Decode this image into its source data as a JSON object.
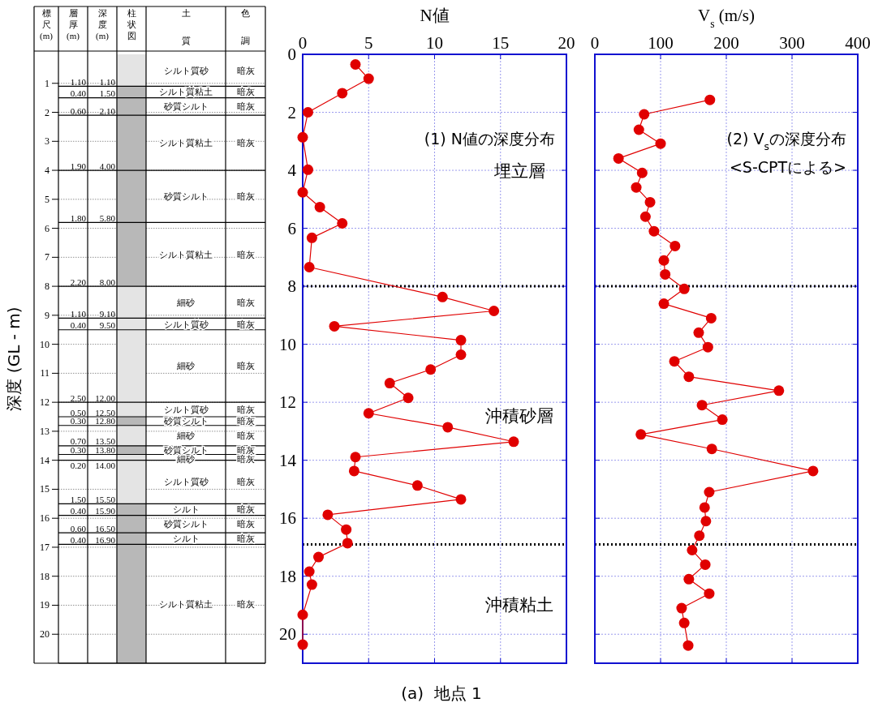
{
  "chart_data": [
    {
      "type": "bar",
      "stacked": true,
      "ylabel": "深度 (GL - m)",
      "categories": [
        "柱状図"
      ],
      "ylim": [
        21,
        0
      ],
      "yticks": [
        1,
        2,
        3,
        4,
        5,
        6,
        7,
        8,
        9,
        10,
        11,
        12,
        13,
        14,
        15,
        16,
        17,
        18,
        19,
        20
      ],
      "grid": "y",
      "series": [
        {
          "name": "シルト質砂",
          "color": "#e4e4e4",
          "values": [
            1.1
          ]
        },
        {
          "name": "シルト質粘土",
          "color": "#b8b8b8",
          "values": [
            0.4
          ]
        },
        {
          "name": "砂質シルト",
          "color": "#b8b8b8",
          "values": [
            0.6
          ]
        },
        {
          "name": "シルト質粘土",
          "color": "#b8b8b8",
          "values": [
            1.9
          ]
        },
        {
          "name": "砂質シルト",
          "color": "#b8b8b8",
          "values": [
            1.8
          ]
        },
        {
          "name": "シルト質粘土",
          "color": "#b8b8b8",
          "values": [
            2.2
          ]
        },
        {
          "name": "細砂",
          "color": "#e4e4e4",
          "values": [
            1.1
          ]
        },
        {
          "name": "シルト質砂",
          "color": "#e4e4e4",
          "values": [
            0.4
          ]
        },
        {
          "name": "細砂",
          "color": "#e4e4e4",
          "values": [
            2.5
          ]
        },
        {
          "name": "シルト質砂",
          "color": "#e4e4e4",
          "values": [
            0.5
          ]
        },
        {
          "name": "砂質シルト",
          "color": "#b8b8b8",
          "values": [
            0.3
          ]
        },
        {
          "name": "細砂",
          "color": "#e4e4e4",
          "values": [
            0.7
          ]
        },
        {
          "name": "砂質シルト",
          "color": "#b8b8b8",
          "values": [
            0.3
          ]
        },
        {
          "name": "細砂",
          "color": "#e4e4e4",
          "values": [
            0.2
          ]
        },
        {
          "name": "シルト質砂",
          "color": "#e4e4e4",
          "values": [
            1.5
          ]
        },
        {
          "name": "シルト",
          "color": "#b8b8b8",
          "values": [
            0.4
          ]
        },
        {
          "name": "砂質シルト",
          "color": "#b8b8b8",
          "values": [
            0.6
          ]
        },
        {
          "name": "シルト",
          "color": "#b8b8b8",
          "values": [
            0.4
          ]
        },
        {
          "name": "シルト質粘土",
          "color": "#b8b8b8",
          "values": [
            4.1
          ]
        }
      ],
      "annotations": [
        "標尺(m)",
        "層厚(m)",
        "深度(m)",
        "土質",
        "色調",
        "暗灰",
        "暗灰",
        "暗灰",
        "暗灰",
        "暗灰",
        "暗灰",
        "暗灰",
        "暗灰",
        "暗灰",
        "暗灰",
        "暗灰",
        "暗灰",
        "暗灰",
        "暗灰",
        "暗灰",
        "暗灰",
        "暗灰",
        "暗灰",
        "暗灰",
        "1.10",
        "0.40",
        "0.60",
        "1.90",
        "1.80",
        "2.20",
        "1.10",
        "0.40",
        "2.50",
        "0.50",
        "0.30",
        "0.70",
        "0.30",
        "0.20",
        "1.50",
        "0.40",
        "0.60",
        "0.40",
        "1.10",
        "1.50",
        "2.10",
        "4.00",
        "5.80",
        "8.00",
        "9.10",
        "9.50",
        "12.00",
        "12.50",
        "12.80",
        "13.50",
        "13.80",
        "14.00",
        "15.50",
        "15.90",
        "16.50",
        "16.90"
      ]
    },
    {
      "type": "line",
      "title": "(1) N値の深度分布",
      "xlabel": "N値",
      "xlim": [
        0,
        20
      ],
      "xticks": [
        0,
        5,
        10,
        15,
        20
      ],
      "ylim": [
        21,
        0
      ],
      "yticks": [
        0,
        2,
        4,
        6,
        8,
        10,
        12,
        14,
        16,
        18,
        20
      ],
      "grid": true,
      "marker": "circle",
      "line_style": "solid",
      "series": [
        {
          "color": "#e00000",
          "x": [
            4,
            5,
            3,
            0.4,
            0,
            0.4,
            0,
            1.3,
            3,
            0.7,
            0.5,
            10.6,
            14.5,
            2.4,
            12,
            12,
            9.7,
            6.6,
            8,
            5,
            11,
            16,
            4,
            3.9,
            8.7,
            12,
            1.9,
            3.3,
            3.4,
            1.2,
            0.5,
            0.7,
            0,
            0
          ],
          "values": [
            0.35,
            0.84,
            1.34,
            2.0,
            2.86,
            3.98,
            4.76,
            5.27,
            5.83,
            6.33,
            7.34,
            8.37,
            8.85,
            9.38,
            9.86,
            10.36,
            10.87,
            11.34,
            11.85,
            12.38,
            12.86,
            13.36,
            13.89,
            14.37,
            14.87,
            15.35,
            15.88,
            16.39,
            16.86,
            17.34,
            17.84,
            18.29,
            19.33,
            20.36
          ]
        }
      ],
      "ref_lines": [
        {
          "axis": "y",
          "value": 8.0,
          "color": "#000000",
          "line_style": "dotted"
        },
        {
          "axis": "y",
          "value": 16.9,
          "color": "#000000",
          "line_style": "dotted"
        }
      ],
      "annotations": [
        "埋立層",
        "沖積砂層",
        "沖積粘土",
        "(a)  地点 1"
      ]
    },
    {
      "type": "line",
      "title": "(2) V$_{s}$の深度分布",
      "subtitle": "<S-CPTによる>",
      "xlabel": "V$_{s}$ (m/s)",
      "xlim": [
        0,
        400
      ],
      "xticks": [
        0,
        100,
        200,
        300,
        400
      ],
      "ylim": [
        21,
        0
      ],
      "yticks": [
        0,
        2,
        4,
        6,
        8,
        10,
        12,
        14,
        16,
        18,
        20
      ],
      "tick_labels": "x",
      "grid": true,
      "marker": "circle",
      "line_style": "solid",
      "series": [
        {
          "color": "#e00000",
          "x": [
            175,
            75,
            67,
            100,
            36,
            72,
            63,
            84,
            77,
            90,
            122,
            105,
            107,
            136,
            105,
            177,
            158,
            172,
            121,
            143,
            280,
            163,
            194,
            70,
            178,
            332,
            174,
            167,
            169,
            159,
            148,
            168,
            143,
            174,
            132,
            136,
            142
          ],
          "values": [
            1.57,
            2.07,
            2.6,
            3.08,
            3.59,
            4.09,
            4.59,
            5.1,
            5.6,
            6.1,
            6.61,
            7.11,
            7.59,
            8.09,
            8.6,
            9.1,
            9.6,
            10.1,
            10.59,
            11.12,
            11.6,
            12.1,
            12.6,
            13.11,
            13.61,
            14.37,
            15.1,
            15.63,
            16.1,
            16.6,
            17.1,
            17.6,
            18.1,
            18.6,
            19.1,
            19.61,
            20.39
          ]
        }
      ],
      "ref_lines": [
        {
          "axis": "y",
          "value": 8.0,
          "color": "#000000",
          "line_style": "dotted"
        },
        {
          "axis": "y",
          "value": 16.9,
          "color": "#000000",
          "line_style": "dotted"
        }
      ]
    }
  ]
}
